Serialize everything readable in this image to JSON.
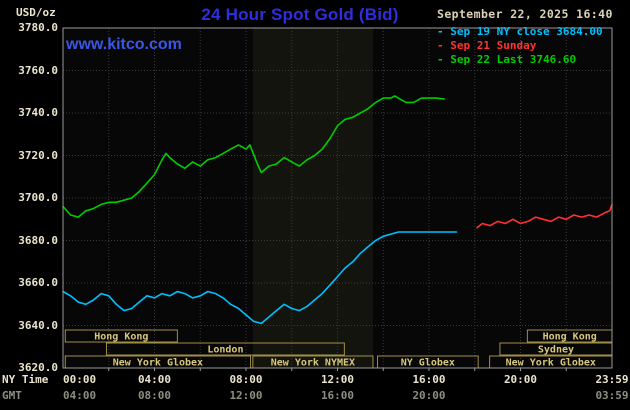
{
  "colors": {
    "plot_bg": "#070707",
    "band": "#14140e",
    "grid": "#3a3a3a",
    "border": "#9a9a9a",
    "axis_text": "#eae4cc",
    "gmt_text": "#8e8e80",
    "session_text": "#d8c87c",
    "session_border": "#a08f46",
    "title_blue": "#2e2ee0",
    "watermark_blue": "#3a57e8"
  },
  "header": {
    "units": "USD/oz",
    "datetime": "September 22, 2025 16:40",
    "watermark": "www.kitco.com",
    "legend_marker": "-"
  },
  "chart_data": {
    "type": "line",
    "title": "24 Hour Spot Gold (Bid)",
    "ylabel": "USD/oz",
    "ylim": [
      3620,
      3780
    ],
    "y_ticks": [
      3780,
      3760,
      3740,
      3720,
      3700,
      3680,
      3660,
      3640,
      3620
    ],
    "xlim_hours": [
      0,
      24
    ],
    "x_axis": {
      "ny_caption": "NY Time",
      "gmt_caption": "GMT",
      "ny_ticks": [
        {
          "label": "00:00",
          "hour": 0
        },
        {
          "label": "04:00",
          "hour": 4
        },
        {
          "label": "08:00",
          "hour": 8
        },
        {
          "label": "12:00",
          "hour": 12
        },
        {
          "label": "16:00",
          "hour": 16
        },
        {
          "label": "20:00",
          "hour": 20
        },
        {
          "label": "23:59",
          "hour": 24
        }
      ],
      "gmt_ticks": [
        {
          "label": "04:00",
          "hour": 0
        },
        {
          "label": "08:00",
          "hour": 4
        },
        {
          "label": "12:00",
          "hour": 8
        },
        {
          "label": "16:00",
          "hour": 12
        },
        {
          "label": "20:00",
          "hour": 16
        },
        {
          "label": "03:59",
          "hour": 24
        }
      ]
    },
    "nymex_band_hours": [
      8.3,
      13.55
    ],
    "sessions": [
      {
        "boxes": [
          {
            "label": "Hong Kong",
            "start": 0.1,
            "end": 5.0
          },
          {
            "label": "Hong Kong",
            "start": 20.3,
            "end": 24
          }
        ]
      },
      {
        "boxes": [
          {
            "label": "London",
            "start": 1.9,
            "end": 12.3
          },
          {
            "label": "Sydney",
            "start": 19.1,
            "end": 24
          }
        ]
      },
      {
        "boxes": [
          {
            "label": "New York Globex",
            "start": 0.1,
            "end": 8.2
          },
          {
            "label": "New York NYMEX",
            "start": 8.3,
            "end": 13.55
          },
          {
            "label": "NY Globex",
            "start": 13.75,
            "end": 18.15
          },
          {
            "label": "New York Globex",
            "start": 18.65,
            "end": 24
          }
        ]
      }
    ],
    "series": [
      {
        "key": "sep19",
        "name": "Sep 19 NY close 3684.00",
        "color": "#00bfff",
        "points": [
          [
            0,
            3656
          ],
          [
            0.33,
            3654
          ],
          [
            0.67,
            3651
          ],
          [
            1,
            3650
          ],
          [
            1.33,
            3652
          ],
          [
            1.67,
            3655
          ],
          [
            2,
            3654
          ],
          [
            2.33,
            3650
          ],
          [
            2.67,
            3647
          ],
          [
            3,
            3648
          ],
          [
            3.33,
            3651
          ],
          [
            3.67,
            3654
          ],
          [
            4,
            3653
          ],
          [
            4.33,
            3655
          ],
          [
            4.67,
            3654
          ],
          [
            5,
            3656
          ],
          [
            5.33,
            3655
          ],
          [
            5.67,
            3653
          ],
          [
            6,
            3654
          ],
          [
            6.33,
            3656
          ],
          [
            6.67,
            3655
          ],
          [
            7,
            3653
          ],
          [
            7.33,
            3650
          ],
          [
            7.67,
            3648
          ],
          [
            8,
            3645
          ],
          [
            8.33,
            3642
          ],
          [
            8.67,
            3641
          ],
          [
            9,
            3644
          ],
          [
            9.33,
            3647
          ],
          [
            9.67,
            3650
          ],
          [
            10,
            3648
          ],
          [
            10.33,
            3647
          ],
          [
            10.67,
            3649
          ],
          [
            11,
            3652
          ],
          [
            11.33,
            3655
          ],
          [
            11.67,
            3659
          ],
          [
            12,
            3663
          ],
          [
            12.33,
            3667
          ],
          [
            12.67,
            3670
          ],
          [
            13,
            3674
          ],
          [
            13.33,
            3677
          ],
          [
            13.67,
            3680
          ],
          [
            14,
            3682
          ],
          [
            14.33,
            3683
          ],
          [
            14.67,
            3684
          ],
          [
            15,
            3684
          ],
          [
            15.5,
            3684
          ],
          [
            16,
            3684
          ],
          [
            16.5,
            3684
          ],
          [
            17,
            3684
          ],
          [
            17.2,
            3684
          ]
        ]
      },
      {
        "key": "sep21",
        "name": "Sep 21 Sunday",
        "color": "#ff3232",
        "points": [
          [
            18.1,
            3686
          ],
          [
            18.33,
            3688
          ],
          [
            18.67,
            3687
          ],
          [
            19,
            3689
          ],
          [
            19.33,
            3688
          ],
          [
            19.67,
            3690
          ],
          [
            20,
            3688
          ],
          [
            20.33,
            3689
          ],
          [
            20.67,
            3691
          ],
          [
            21,
            3690
          ],
          [
            21.33,
            3689
          ],
          [
            21.67,
            3691
          ],
          [
            22,
            3690
          ],
          [
            22.33,
            3692
          ],
          [
            22.67,
            3691
          ],
          [
            23,
            3692
          ],
          [
            23.33,
            3691
          ],
          [
            23.67,
            3693
          ],
          [
            23.9,
            3694
          ],
          [
            24,
            3697
          ]
        ]
      },
      {
        "key": "sep22",
        "name": "Sep 22 Last 3746.60",
        "color": "#00cc00",
        "points": [
          [
            0,
            3696
          ],
          [
            0.33,
            3692
          ],
          [
            0.67,
            3691
          ],
          [
            1,
            3694
          ],
          [
            1.33,
            3695
          ],
          [
            1.67,
            3697
          ],
          [
            2,
            3698
          ],
          [
            2.33,
            3698
          ],
          [
            2.67,
            3699
          ],
          [
            3,
            3700
          ],
          [
            3.33,
            3703
          ],
          [
            3.67,
            3707
          ],
          [
            4,
            3711
          ],
          [
            4.33,
            3718
          ],
          [
            4.5,
            3721
          ],
          [
            4.67,
            3719
          ],
          [
            5,
            3716
          ],
          [
            5.33,
            3714
          ],
          [
            5.67,
            3717
          ],
          [
            6,
            3715
          ],
          [
            6.33,
            3718
          ],
          [
            6.67,
            3719
          ],
          [
            7,
            3721
          ],
          [
            7.33,
            3723
          ],
          [
            7.67,
            3725
          ],
          [
            8,
            3723
          ],
          [
            8.17,
            3725
          ],
          [
            8.5,
            3716
          ],
          [
            8.67,
            3712
          ],
          [
            9,
            3715
          ],
          [
            9.33,
            3716
          ],
          [
            9.67,
            3719
          ],
          [
            10,
            3717
          ],
          [
            10.33,
            3715
          ],
          [
            10.67,
            3718
          ],
          [
            11,
            3720
          ],
          [
            11.33,
            3723
          ],
          [
            11.67,
            3728
          ],
          [
            12,
            3734
          ],
          [
            12.33,
            3737
          ],
          [
            12.67,
            3738
          ],
          [
            13,
            3740
          ],
          [
            13.33,
            3742
          ],
          [
            13.67,
            3745
          ],
          [
            14,
            3747
          ],
          [
            14.33,
            3747
          ],
          [
            14.5,
            3748
          ],
          [
            14.83,
            3746
          ],
          [
            15,
            3745
          ],
          [
            15.33,
            3745
          ],
          [
            15.67,
            3747
          ],
          [
            16,
            3747
          ],
          [
            16.33,
            3747
          ],
          [
            16.67,
            3746.6
          ]
        ]
      }
    ]
  }
}
